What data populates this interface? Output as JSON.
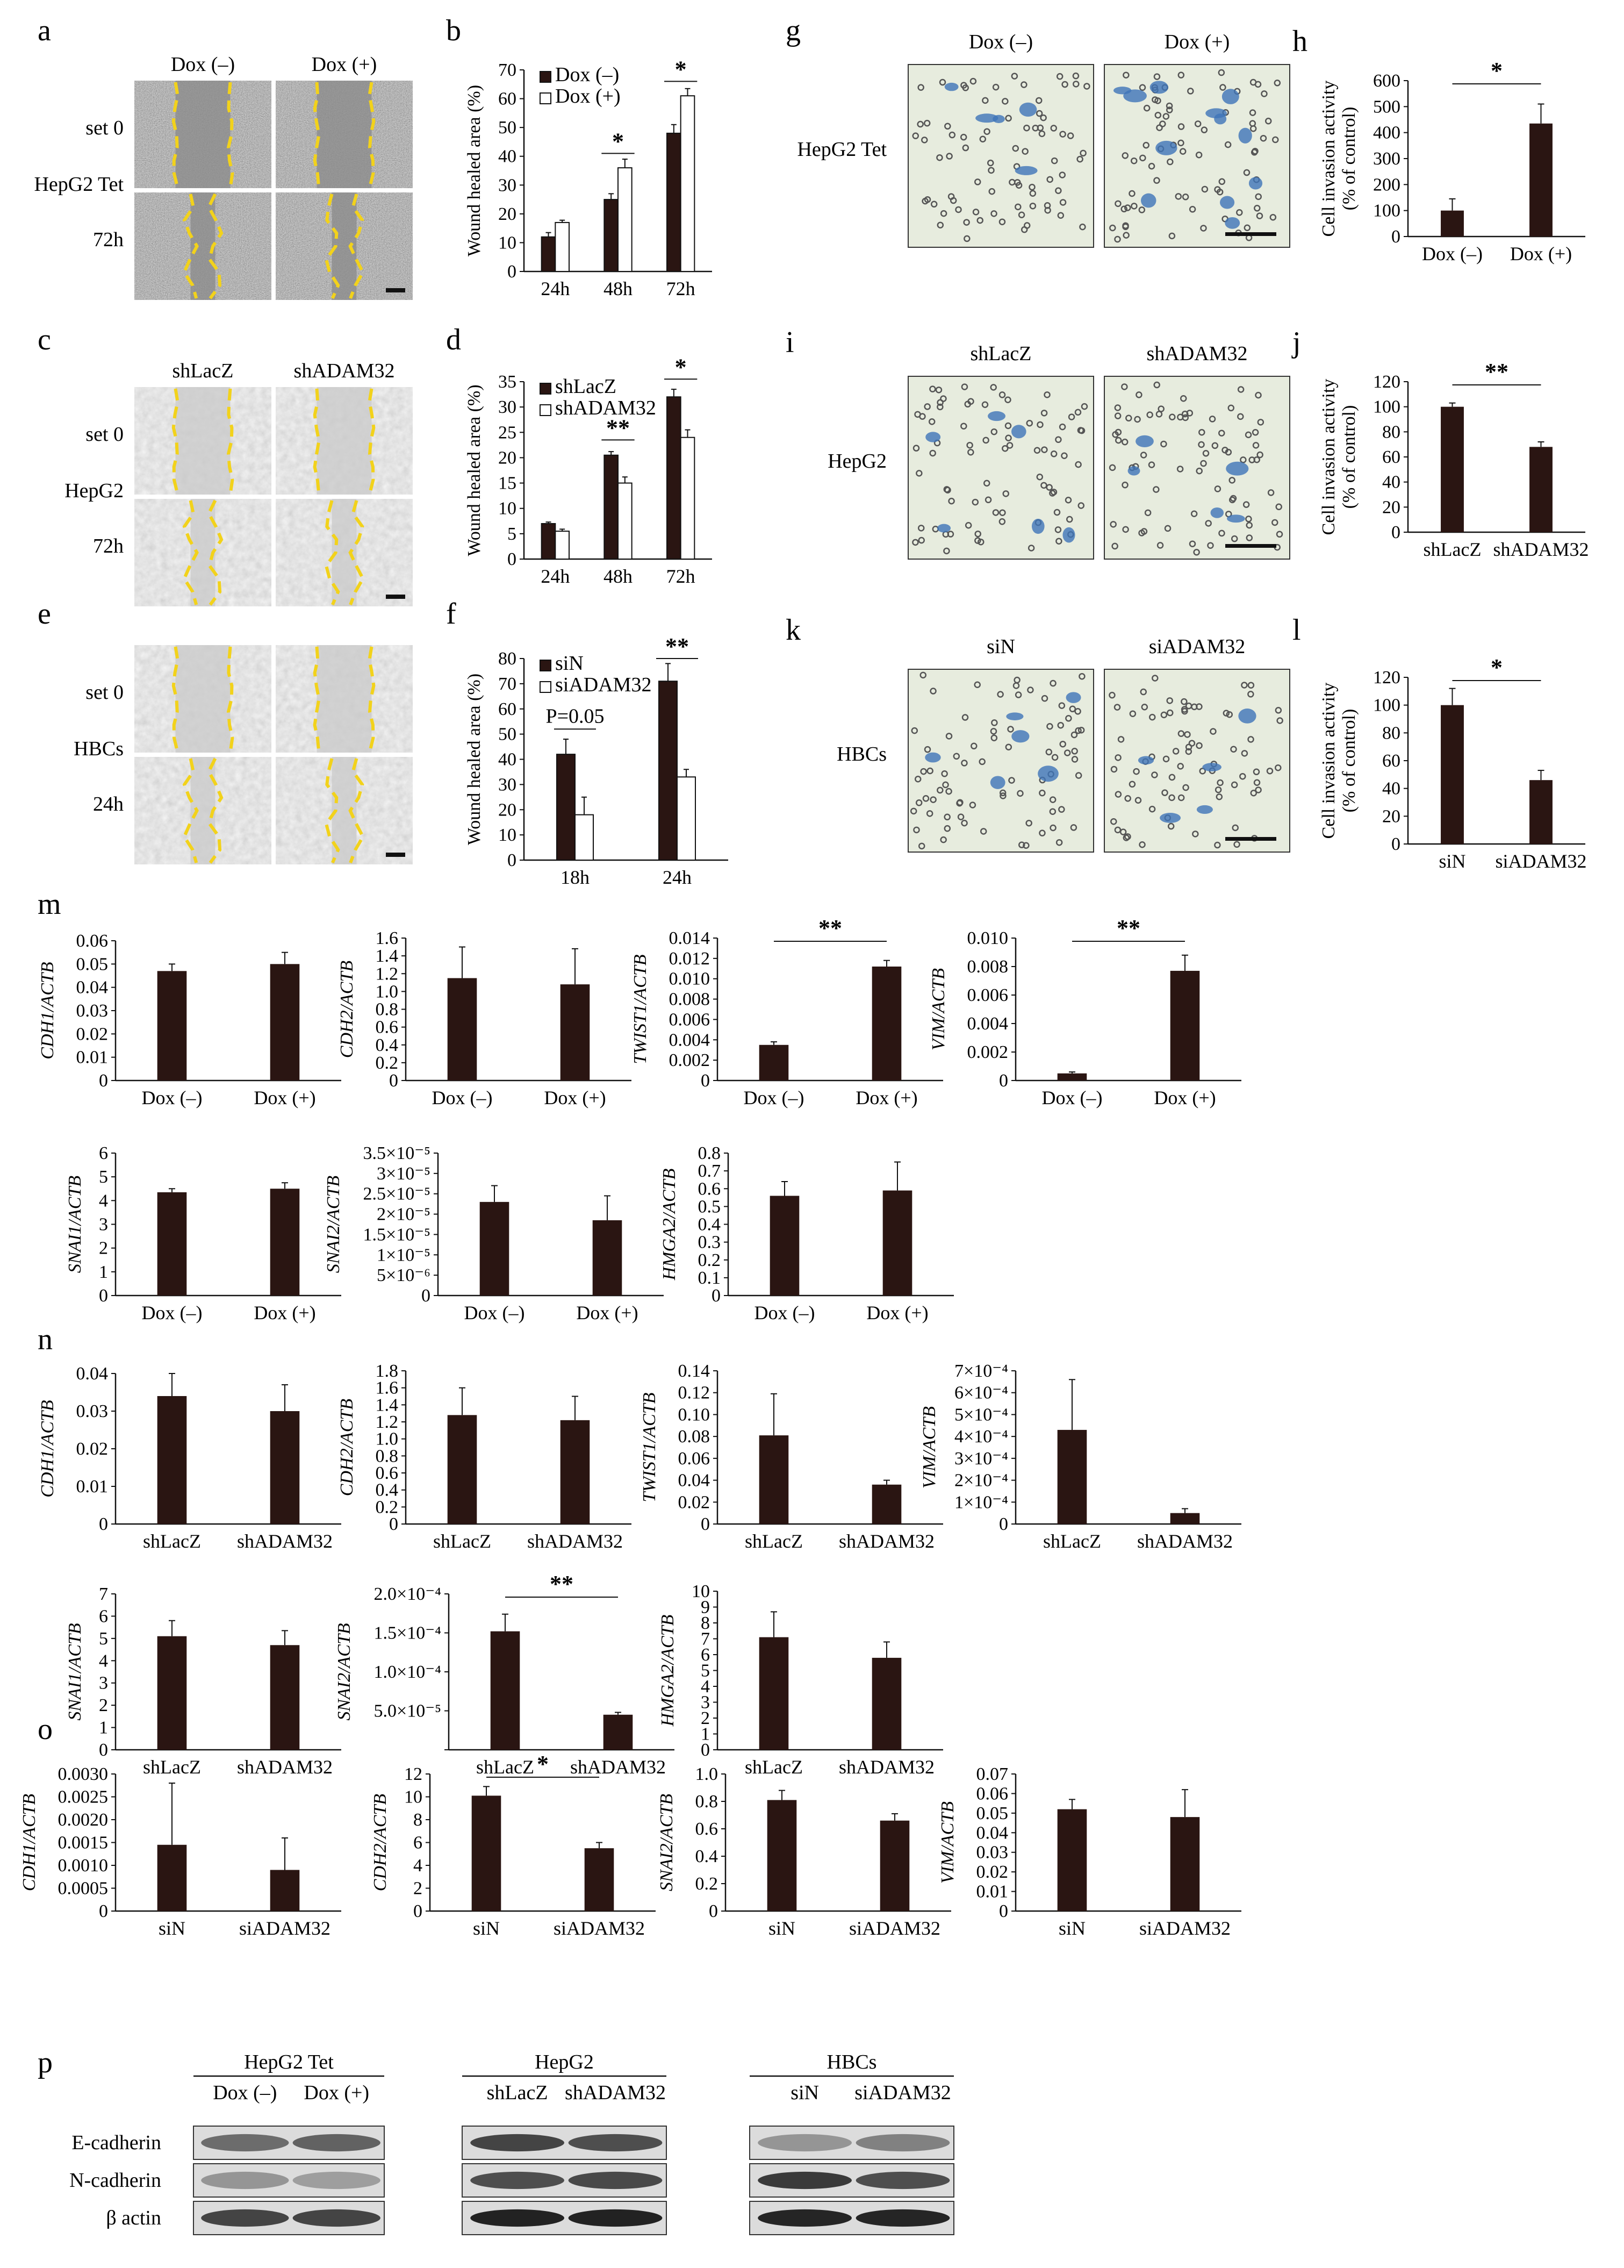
{
  "panel_labels": {
    "a": "a",
    "b": "b",
    "c": "c",
    "d": "d",
    "e": "e",
    "f": "f",
    "g": "g",
    "h": "h",
    "i": "i",
    "j": "j",
    "k": "k",
    "l": "l",
    "m": "m",
    "n": "n",
    "o": "o",
    "p": "p"
  },
  "wound_images": [
    {
      "id": "a",
      "cols": [
        "Dox (–)",
        "Dox (+)"
      ],
      "rows": [
        "set 0",
        "72h"
      ],
      "cell_line": "HepG2  Tet"
    },
    {
      "id": "c",
      "cols": [
        "shLacZ",
        "shADAM32"
      ],
      "rows": [
        "set 0",
        "72h"
      ],
      "cell_line": "HepG2"
    },
    {
      "id": "e",
      "cols": [
        "",
        ""
      ],
      "rows": [
        "set 0",
        "24h"
      ],
      "cell_line": "HBCs"
    }
  ],
  "invasion_images": [
    {
      "id": "g",
      "cols": [
        "Dox (–)",
        "Dox  (+)"
      ],
      "cell_line": "HepG2 Tet"
    },
    {
      "id": "i",
      "cols": [
        "shLacZ",
        "shADAM32"
      ],
      "cell_line": "HepG2"
    },
    {
      "id": "k",
      "cols": [
        "siN",
        "siADAM32"
      ],
      "cell_line": "HBCs"
    }
  ],
  "western_blot": {
    "groups": [
      {
        "title": "HepG2 Tet",
        "lanes": [
          "Dox (–)",
          "Dox (+)"
        ]
      },
      {
        "title": "HepG2",
        "lanes": [
          "shLacZ",
          "shADAM32"
        ]
      },
      {
        "title": "HBCs",
        "lanes": [
          "siN",
          "siADAM32"
        ]
      }
    ],
    "rows": [
      "E-cadherin",
      "N-cadherin",
      "β actin"
    ]
  },
  "colors": {
    "bar_dark": "#2a1512",
    "bar_light": "#ffffff",
    "scratch": "#f2d21b",
    "cell_bg": "#e7ecde",
    "stain": "#3f74b8"
  },
  "chart_data": [
    {
      "id": "b",
      "type": "bar",
      "categories": [
        "24h",
        "48h",
        "72h"
      ],
      "series": [
        {
          "name": "Dox (–)",
          "values": [
            12,
            25,
            48
          ],
          "errors": [
            1.5,
            2,
            3
          ]
        },
        {
          "name": "Dox (+)",
          "values": [
            17,
            36,
            61
          ],
          "errors": [
            0.8,
            3,
            2.5
          ]
        }
      ],
      "ylabel": "Wound healed area (%)",
      "yticks": [
        "0",
        "10",
        "20",
        "30",
        "40",
        "50",
        "60",
        "70"
      ],
      "ylim": [
        0,
        70
      ],
      "sig": [
        {
          "between": [
            1,
            "48h"
          ],
          "text": "*"
        },
        {
          "between": [
            2,
            "72h"
          ],
          "text": "*"
        }
      ]
    },
    {
      "id": "d",
      "type": "bar",
      "categories": [
        "24h",
        "48h",
        "72h"
      ],
      "series": [
        {
          "name": "shLacZ",
          "values": [
            7,
            20.5,
            32
          ],
          "errors": [
            0.3,
            0.7,
            1.5
          ]
        },
        {
          "name": "shADAM32",
          "values": [
            5.5,
            15,
            24
          ],
          "errors": [
            0.4,
            1.2,
            1.5
          ]
        }
      ],
      "ylabel": "Wound healed area (%)",
      "yticks": [
        "0",
        "5",
        "10",
        "15",
        "20",
        "25",
        "30",
        "35"
      ],
      "ylim": [
        0,
        35
      ]
    },
    {
      "id": "f",
      "type": "bar",
      "categories": [
        "18h",
        "24h"
      ],
      "series": [
        {
          "name": "siN",
          "values": [
            42,
            71
          ],
          "errors": [
            6,
            7
          ]
        },
        {
          "name": "siADAM32",
          "values": [
            18,
            33
          ],
          "errors": [
            7,
            3
          ]
        }
      ],
      "ylabel": "Wound healed area (%)",
      "yticks": [
        "0",
        "10",
        "20",
        "30",
        "40",
        "50",
        "60",
        "70",
        "80"
      ],
      "ylim": [
        0,
        80
      ],
      "annotations": [
        "P=0.05",
        "**"
      ]
    },
    {
      "id": "h",
      "type": "bar",
      "categories": [
        "Dox (–)",
        "Dox (+)"
      ],
      "values": [
        100,
        435
      ],
      "errors": [
        45,
        75
      ],
      "ylabel": "Cell invasion activity (% of control)",
      "yticks": [
        "0",
        "100",
        "200",
        "300",
        "400",
        "500",
        "600"
      ],
      "ylim": [
        0,
        600
      ],
      "annotations": [
        "*"
      ]
    },
    {
      "id": "j",
      "type": "bar",
      "categories": [
        "shLacZ",
        "shADAM32"
      ],
      "values": [
        100,
        68
      ],
      "errors": [
        3,
        4
      ],
      "ylabel": "Cell invasion activity (% of control)",
      "yticks": [
        "0",
        "20",
        "40",
        "60",
        "80",
        "100",
        "120"
      ],
      "ylim": [
        0,
        120
      ],
      "annotations": [
        "**"
      ]
    },
    {
      "id": "l",
      "type": "bar",
      "categories": [
        "siN",
        "siADAM32"
      ],
      "values": [
        100,
        46
      ],
      "errors": [
        12,
        7
      ],
      "ylabel": "Cell invasion activity (% of control)",
      "yticks": [
        "0",
        "20",
        "40",
        "60",
        "80",
        "100",
        "120"
      ],
      "ylim": [
        0,
        120
      ],
      "annotations": [
        "*"
      ]
    },
    {
      "id": "m1",
      "type": "bar",
      "categories": [
        "Dox (–)",
        "Dox (+)"
      ],
      "values": [
        0.047,
        0.05
      ],
      "errors": [
        0.003,
        0.005
      ],
      "ylabel": "CDH1/ACTB",
      "yticks": [
        "0",
        "0.01",
        "0.02",
        "0.03",
        "0.04",
        "0.05",
        "0.06"
      ],
      "ylim": [
        0,
        0.06
      ]
    },
    {
      "id": "m2",
      "type": "bar",
      "categories": [
        "Dox (–)",
        "Dox (+)"
      ],
      "values": [
        1.15,
        1.08
      ],
      "errors": [
        0.35,
        0.4
      ],
      "ylabel": "CDH2/ACTB",
      "yticks": [
        "0",
        "0.2",
        "0.4",
        "0.6",
        "0.8",
        "1.0",
        "1.2",
        "1.4",
        "1.6"
      ],
      "ylim": [
        0,
        1.6
      ]
    },
    {
      "id": "m3",
      "type": "bar",
      "categories": [
        "Dox (–)",
        "Dox (+)"
      ],
      "values": [
        0.0035,
        0.0112
      ],
      "errors": [
        0.0003,
        0.0006
      ],
      "ylabel": "TWIST1/ACTB",
      "yticks": [
        "0",
        "0.002",
        "0.004",
        "0.006",
        "0.008",
        "0.010",
        "0.012",
        "0.014"
      ],
      "ylim": [
        0,
        0.014
      ],
      "annotations": [
        "**"
      ]
    },
    {
      "id": "m4",
      "type": "bar",
      "categories": [
        "Dox (–)",
        "Dox (+)"
      ],
      "values": [
        0.0005,
        0.0077
      ],
      "errors": [
        0.0001,
        0.0011
      ],
      "ylabel": "VIM/ACTB",
      "yticks": [
        "0",
        "0.002",
        "0.004",
        "0.006",
        "0.008",
        "0.010"
      ],
      "ylim": [
        0,
        0.01
      ],
      "annotations": [
        "**"
      ]
    },
    {
      "id": "m5",
      "type": "bar",
      "categories": [
        "Dox (–)",
        "Dox (+)"
      ],
      "values": [
        4.35,
        4.5
      ],
      "errors": [
        0.15,
        0.25
      ],
      "ylabel": "SNAI1/ACTB",
      "yticks": [
        "0",
        "1",
        "2",
        "3",
        "4",
        "5",
        "6"
      ],
      "ylim": [
        0,
        6
      ]
    },
    {
      "id": "m6",
      "type": "bar",
      "categories": [
        "Dox (–)",
        "Dox (+)"
      ],
      "values": [
        2.3e-05,
        1.85e-05
      ],
      "errors": [
        4e-06,
        6e-06
      ],
      "ylabel": "SNAI2/ACTB",
      "yticks": [
        "0",
        "5×10⁻⁶",
        "1×10⁻⁵",
        "1.5×10⁻⁵",
        "2×10⁻⁵",
        "2.5×10⁻⁵",
        "3×10⁻⁵",
        "3.5×10⁻⁵"
      ],
      "ylim": [
        0,
        3.5e-05
      ]
    },
    {
      "id": "m7",
      "type": "bar",
      "categories": [
        "Dox (–)",
        "Dox (+)"
      ],
      "values": [
        0.56,
        0.59
      ],
      "errors": [
        0.08,
        0.16
      ],
      "ylabel": "HMGA2/ACTB",
      "yticks": [
        "0",
        "0.1",
        "0.2",
        "0.3",
        "0.4",
        "0.5",
        "0.6",
        "0.7",
        "0.8"
      ],
      "ylim": [
        0,
        0.8
      ]
    },
    {
      "id": "n1",
      "type": "bar",
      "categories": [
        "shLacZ",
        "shADAM32"
      ],
      "values": [
        0.034,
        0.03
      ],
      "errors": [
        0.006,
        0.007
      ],
      "ylabel": "CDH1/ACTB",
      "yticks": [
        "0",
        "0.01",
        "0.02",
        "0.03",
        "0.04"
      ],
      "ylim": [
        0,
        0.04
      ]
    },
    {
      "id": "n2",
      "type": "bar",
      "categories": [
        "shLacZ",
        "shADAM32"
      ],
      "values": [
        1.28,
        1.22
      ],
      "errors": [
        0.32,
        0.28
      ],
      "ylabel": "CDH2/ACTB",
      "yticks": [
        "0",
        "0.2",
        "0.4",
        "0.6",
        "0.8",
        "1.0",
        "1.2",
        "1.4",
        "1.6",
        "1.8"
      ],
      "ylim": [
        0,
        1.8
      ]
    },
    {
      "id": "n3",
      "type": "bar",
      "categories": [
        "shLacZ",
        "shADAM32"
      ],
      "values": [
        0.081,
        0.036
      ],
      "errors": [
        0.038,
        0.004
      ],
      "ylabel": "TWIST1/ACTB",
      "yticks": [
        "0",
        "0.02",
        "0.04",
        "0.06",
        "0.08",
        "0.10",
        "0.12",
        "0.14"
      ],
      "ylim": [
        0,
        0.14
      ]
    },
    {
      "id": "n4",
      "type": "bar",
      "categories": [
        "shLacZ",
        "shADAM32"
      ],
      "values": [
        0.00043,
        5e-05
      ],
      "errors": [
        0.00023,
        2e-05
      ],
      "ylabel": "VIM/ACTB",
      "yticks": [
        "0",
        "1×10⁻⁴",
        "2×10⁻⁴",
        "3×10⁻⁴",
        "4×10⁻⁴",
        "5×10⁻⁴",
        "6×10⁻⁴",
        "7×10⁻⁴"
      ],
      "ylim": [
        0,
        0.0007
      ]
    },
    {
      "id": "n5",
      "type": "bar",
      "categories": [
        "shLacZ",
        "shADAM32"
      ],
      "values": [
        5.1,
        4.7
      ],
      "errors": [
        0.7,
        0.65
      ],
      "ylabel": "SNAI1/ACTB",
      "yticks": [
        "0",
        "1",
        "2",
        "3",
        "4",
        "5",
        "6",
        "7"
      ],
      "ylim": [
        0,
        7
      ]
    },
    {
      "id": "n6",
      "type": "bar",
      "categories": [
        "shLacZ",
        "shADAM32"
      ],
      "values": [
        0.000152,
        4.5e-05
      ],
      "errors": [
        2.2e-05,
        3e-06
      ],
      "ylabel": "SNAI2/ACTB",
      "yticks": [
        "",
        "5.0×10⁻⁵",
        "1.0×10⁻⁴",
        "1.5×10⁻⁴",
        "2.0×10⁻⁴"
      ],
      "ylim": [
        0,
        0.0002
      ],
      "annotations": [
        "**"
      ]
    },
    {
      "id": "n7",
      "type": "bar",
      "categories": [
        "shLacZ",
        "shADAM32"
      ],
      "values": [
        7.1,
        5.8
      ],
      "errors": [
        1.6,
        1.0
      ],
      "ylabel": "HMGA2/ACTB",
      "yticks": [
        "0",
        "1",
        "2",
        "3",
        "4",
        "5",
        "6",
        "7",
        "8",
        "9",
        "10"
      ],
      "ylim": [
        0,
        10
      ]
    },
    {
      "id": "o1",
      "type": "bar",
      "categories": [
        "siN",
        "siADAM32"
      ],
      "values": [
        0.00145,
        0.0009
      ],
      "errors": [
        0.00135,
        0.0007
      ],
      "ylabel": "CDH1/ACTB",
      "yticks": [
        "0",
        "0.0005",
        "0.0010",
        "0.0015",
        "0.0020",
        "0.0025",
        "0.0030"
      ],
      "ylim": [
        0,
        0.003
      ]
    },
    {
      "id": "o2",
      "type": "bar",
      "categories": [
        "siN",
        "siADAM32"
      ],
      "values": [
        10.1,
        5.5
      ],
      "errors": [
        0.8,
        0.5
      ],
      "ylabel": "CDH2/ACTB",
      "yticks": [
        "0",
        "2",
        "4",
        "6",
        "8",
        "10",
        "12"
      ],
      "ylim": [
        0,
        12
      ],
      "annotations": [
        "*"
      ]
    },
    {
      "id": "o3",
      "type": "bar",
      "categories": [
        "siN",
        "siADAM32"
      ],
      "values": [
        0.81,
        0.66
      ],
      "errors": [
        0.07,
        0.05
      ],
      "ylabel": "SNAI2/ACTB",
      "yticks": [
        "0",
        "0.2",
        "0.4",
        "0.6",
        "0.8",
        "1.0"
      ],
      "ylim": [
        0,
        1.0
      ]
    },
    {
      "id": "o4",
      "type": "bar",
      "categories": [
        "siN",
        "siADAM32"
      ],
      "values": [
        0.052,
        0.048
      ],
      "errors": [
        0.005,
        0.014
      ],
      "ylabel": "VIM/ACTB",
      "yticks": [
        "0",
        "0.01",
        "0.02",
        "0.03",
        "0.04",
        "0.05",
        "0.06",
        "0.07"
      ],
      "ylim": [
        0,
        0.07
      ]
    }
  ]
}
